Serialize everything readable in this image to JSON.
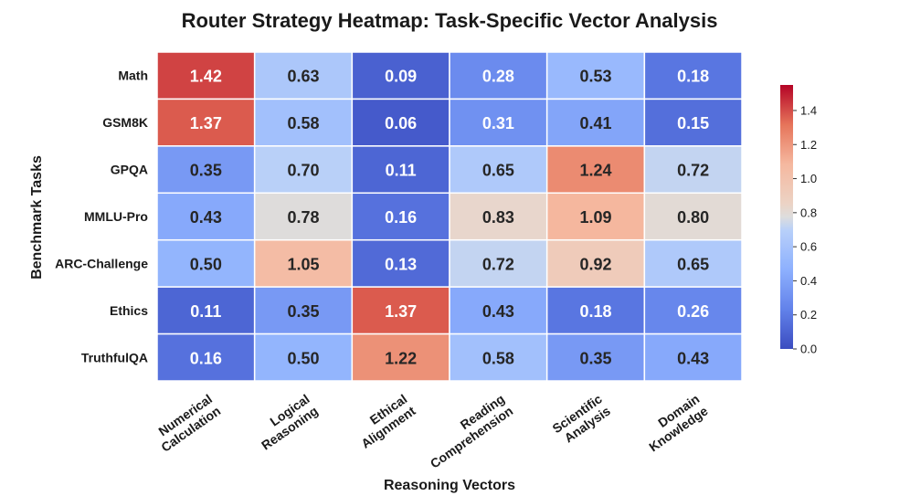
{
  "chart_data": {
    "type": "heatmap",
    "title": "Router Strategy Heatmap: Task-Specific Vector Analysis",
    "xlabel": "Reasoning Vectors",
    "ylabel": "Benchmark Tasks",
    "columns": [
      [
        "Numerical",
        "Calculation"
      ],
      [
        "Logical",
        "Reasoning"
      ],
      [
        "Ethical",
        "Alignment"
      ],
      [
        "Reading",
        "Comprehension"
      ],
      [
        "Scientific",
        "Analysis"
      ],
      [
        "Domain",
        "Knowledge"
      ]
    ],
    "rows": [
      "Math",
      "GSM8K",
      "GPQA",
      "MMLU-Pro",
      "ARC-Challenge",
      "Ethics",
      "TruthfulQA"
    ],
    "values": [
      [
        1.42,
        0.63,
        0.09,
        0.28,
        0.53,
        0.18
      ],
      [
        1.37,
        0.58,
        0.06,
        0.31,
        0.41,
        0.15
      ],
      [
        0.35,
        0.7,
        0.11,
        0.65,
        1.24,
        0.72
      ],
      [
        0.43,
        0.78,
        0.16,
        0.83,
        1.09,
        0.8
      ],
      [
        0.5,
        1.05,
        0.13,
        0.72,
        0.92,
        0.65
      ],
      [
        0.11,
        0.35,
        1.37,
        0.43,
        0.18,
        0.26
      ],
      [
        0.16,
        0.5,
        1.22,
        0.58,
        0.35,
        0.43
      ]
    ],
    "colormap": "coolwarm",
    "vmin": 0.0,
    "vmax": 1.55,
    "colorbar_ticks": [
      0.0,
      0.2,
      0.4,
      0.6,
      0.8,
      1.0,
      1.2,
      1.4
    ],
    "colorbar_tick_labels": [
      "0.0",
      "0.2",
      "0.4",
      "0.6",
      "0.8",
      "1.0",
      "1.2",
      "1.4"
    ]
  }
}
